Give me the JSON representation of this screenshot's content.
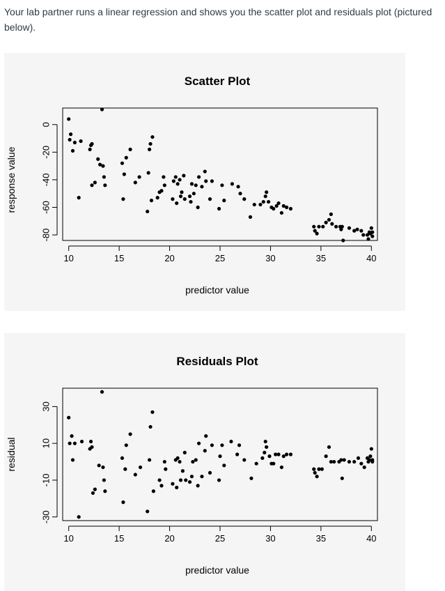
{
  "intro_text": "Your lab partner runs a linear regression and shows you the scatter plot and residuals plot (pictured below).",
  "colors": {
    "panel_bg": "#f5f5f5",
    "point": "#000000",
    "text": "#2d3b45"
  },
  "chart_data": [
    {
      "type": "scatter",
      "title": "Scatter Plot",
      "xlabel": "predictor value",
      "ylabel": "response value",
      "xlim": [
        9.4,
        40.6
      ],
      "ylim": [
        -84,
        12
      ],
      "xticks": [
        10,
        15,
        20,
        25,
        30,
        35,
        40
      ],
      "yticks": [
        0,
        -20,
        -40,
        -60,
        -80
      ],
      "points": [
        [
          10.0,
          4
        ],
        [
          10.2,
          -7
        ],
        [
          10.1,
          -11
        ],
        [
          10.4,
          -19
        ],
        [
          10.6,
          -13
        ],
        [
          11.0,
          -53
        ],
        [
          11.2,
          -12
        ],
        [
          12.1,
          -18
        ],
        [
          12.2,
          -15
        ],
        [
          12.3,
          -14
        ],
        [
          12.3,
          -44
        ],
        [
          12.6,
          -42
        ],
        [
          12.9,
          -25
        ],
        [
          13.1,
          -29
        ],
        [
          13.3,
          11
        ],
        [
          13.4,
          -30
        ],
        [
          13.5,
          -38
        ],
        [
          13.6,
          -44
        ],
        [
          15.3,
          -28
        ],
        [
          15.4,
          -54
        ],
        [
          15.5,
          -36
        ],
        [
          15.7,
          -24
        ],
        [
          16.1,
          -18
        ],
        [
          16.6,
          -42
        ],
        [
          17.0,
          -38
        ],
        [
          17.8,
          -63
        ],
        [
          17.9,
          -35
        ],
        [
          18.0,
          -18
        ],
        [
          18.1,
          -14
        ],
        [
          18.2,
          -55
        ],
        [
          18.3,
          -9
        ],
        [
          18.8,
          -53
        ],
        [
          19.0,
          -49
        ],
        [
          19.2,
          -48
        ],
        [
          19.4,
          -38
        ],
        [
          19.5,
          -44
        ],
        [
          20.3,
          -54
        ],
        [
          20.4,
          -41
        ],
        [
          20.6,
          -38
        ],
        [
          20.7,
          -57
        ],
        [
          20.8,
          -43
        ],
        [
          21.0,
          -40
        ],
        [
          21.1,
          -52
        ],
        [
          21.2,
          -49
        ],
        [
          21.4,
          -37
        ],
        [
          21.5,
          -54
        ],
        [
          22.0,
          -52
        ],
        [
          22.1,
          -56
        ],
        [
          22.2,
          -43
        ],
        [
          22.4,
          -50
        ],
        [
          22.6,
          -44
        ],
        [
          22.8,
          -60
        ],
        [
          22.9,
          -38
        ],
        [
          23.2,
          -45
        ],
        [
          23.5,
          -34
        ],
        [
          23.6,
          -41
        ],
        [
          24.0,
          -54
        ],
        [
          24.2,
          -41
        ],
        [
          24.9,
          -61
        ],
        [
          25.2,
          -44
        ],
        [
          25.4,
          -55
        ],
        [
          26.2,
          -43
        ],
        [
          26.8,
          -45
        ],
        [
          27.0,
          -50
        ],
        [
          27.4,
          -54
        ],
        [
          28.0,
          -67
        ],
        [
          28.4,
          -58
        ],
        [
          29.0,
          -58
        ],
        [
          29.3,
          -56
        ],
        [
          29.5,
          -52
        ],
        [
          29.6,
          -49
        ],
        [
          29.8,
          -56
        ],
        [
          30.1,
          -60
        ],
        [
          30.3,
          -61
        ],
        [
          30.6,
          -59
        ],
        [
          30.8,
          -57
        ],
        [
          31.1,
          -64
        ],
        [
          31.3,
          -59
        ],
        [
          31.6,
          -60
        ],
        [
          32.0,
          -61
        ],
        [
          34.3,
          -74
        ],
        [
          34.4,
          -77
        ],
        [
          34.6,
          -79
        ],
        [
          34.8,
          -74
        ],
        [
          35.2,
          -74
        ],
        [
          35.5,
          -71
        ],
        [
          35.8,
          -69
        ],
        [
          36.0,
          -65
        ],
        [
          36.1,
          -72
        ],
        [
          36.5,
          -74
        ],
        [
          36.9,
          -74
        ],
        [
          37.0,
          -76
        ],
        [
          37.1,
          -74
        ],
        [
          37.2,
          -84
        ],
        [
          37.8,
          -75
        ],
        [
          38.3,
          -77
        ],
        [
          38.6,
          -76
        ],
        [
          39.0,
          -77
        ],
        [
          39.2,
          -80
        ],
        [
          39.6,
          -80
        ],
        [
          39.7,
          -83
        ],
        [
          39.8,
          -78
        ],
        [
          39.9,
          -79
        ],
        [
          40.0,
          -75
        ],
        [
          40.1,
          -78
        ],
        [
          40.1,
          -81
        ]
      ]
    },
    {
      "type": "scatter",
      "title": "Residuals Plot",
      "xlabel": "predictor value",
      "ylabel": "residual",
      "xlim": [
        9.4,
        40.6
      ],
      "ylim": [
        -32,
        40
      ],
      "xticks": [
        10,
        15,
        20,
        25,
        30,
        35,
        40
      ],
      "yticks": [
        30,
        10,
        -10,
        -30
      ],
      "points": [
        [
          10.0,
          24
        ],
        [
          10.1,
          10
        ],
        [
          10.3,
          14
        ],
        [
          10.4,
          1
        ],
        [
          10.6,
          10
        ],
        [
          11.0,
          -30
        ],
        [
          11.3,
          11
        ],
        [
          12.1,
          7
        ],
        [
          12.2,
          11
        ],
        [
          12.3,
          8
        ],
        [
          12.4,
          -17
        ],
        [
          12.6,
          -15
        ],
        [
          13.0,
          -2
        ],
        [
          13.3,
          38
        ],
        [
          13.4,
          -3
        ],
        [
          13.5,
          -10
        ],
        [
          13.6,
          -16
        ],
        [
          15.3,
          2
        ],
        [
          15.4,
          -22
        ],
        [
          15.6,
          -4
        ],
        [
          15.7,
          9
        ],
        [
          16.1,
          15
        ],
        [
          16.6,
          -7
        ],
        [
          17.1,
          -3
        ],
        [
          17.8,
          -27
        ],
        [
          18.0,
          1
        ],
        [
          18.1,
          19
        ],
        [
          18.3,
          27
        ],
        [
          18.4,
          -16
        ],
        [
          19.0,
          -10
        ],
        [
          19.2,
          -13
        ],
        [
          19.5,
          0
        ],
        [
          19.6,
          -4
        ],
        [
          20.3,
          -12
        ],
        [
          20.6,
          1
        ],
        [
          20.7,
          -14
        ],
        [
          20.8,
          2
        ],
        [
          21.0,
          0
        ],
        [
          21.1,
          -10
        ],
        [
          21.3,
          -5
        ],
        [
          21.5,
          5
        ],
        [
          21.6,
          -10
        ],
        [
          22.0,
          -11
        ],
        [
          22.2,
          -8
        ],
        [
          22.3,
          0
        ],
        [
          22.6,
          1
        ],
        [
          22.8,
          -13
        ],
        [
          22.9,
          10
        ],
        [
          23.2,
          -8
        ],
        [
          23.5,
          6
        ],
        [
          23.6,
          14
        ],
        [
          24.0,
          -6
        ],
        [
          24.2,
          9
        ],
        [
          24.9,
          -10
        ],
        [
          25.0,
          3
        ],
        [
          25.2,
          9
        ],
        [
          25.4,
          -2
        ],
        [
          26.1,
          11
        ],
        [
          26.7,
          4
        ],
        [
          26.9,
          9
        ],
        [
          27.4,
          1
        ],
        [
          28.1,
          -9
        ],
        [
          28.6,
          -1
        ],
        [
          29.2,
          2
        ],
        [
          29.4,
          5
        ],
        [
          29.5,
          11
        ],
        [
          29.6,
          8
        ],
        [
          29.9,
          3
        ],
        [
          30.1,
          -1
        ],
        [
          30.3,
          -1
        ],
        [
          30.5,
          4
        ],
        [
          30.8,
          4
        ],
        [
          31.1,
          -3
        ],
        [
          31.3,
          3
        ],
        [
          31.6,
          4
        ],
        [
          32.0,
          4
        ],
        [
          34.3,
          -4
        ],
        [
          34.4,
          -6
        ],
        [
          34.6,
          -8
        ],
        [
          34.8,
          -4
        ],
        [
          35.1,
          -4
        ],
        [
          35.5,
          3
        ],
        [
          35.8,
          8
        ],
        [
          36.0,
          0
        ],
        [
          36.3,
          0
        ],
        [
          36.8,
          0
        ],
        [
          37.0,
          1
        ],
        [
          37.1,
          -9
        ],
        [
          37.3,
          1
        ],
        [
          37.8,
          0
        ],
        [
          38.3,
          0
        ],
        [
          38.7,
          2
        ],
        [
          39.0,
          -1
        ],
        [
          39.3,
          -3
        ],
        [
          39.6,
          2
        ],
        [
          39.7,
          0
        ],
        [
          39.8,
          1
        ],
        [
          39.9,
          3
        ],
        [
          40.0,
          7
        ],
        [
          40.1,
          1
        ],
        [
          40.1,
          0
        ]
      ]
    }
  ]
}
